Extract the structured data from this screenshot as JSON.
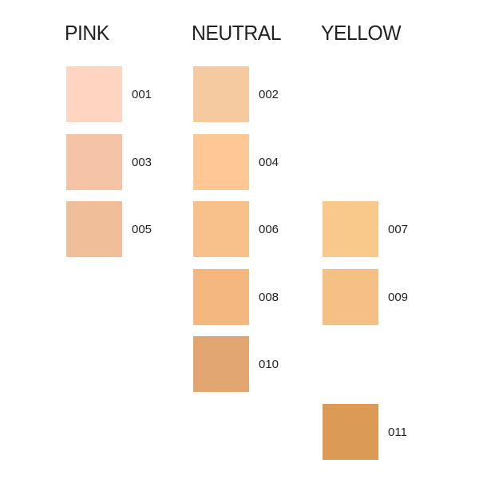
{
  "columns": [
    {
      "title": "PINK",
      "slots": [
        {
          "code": "001",
          "color": "#FDD5C0"
        },
        {
          "code": "003",
          "color": "#F5C4A6"
        },
        {
          "code": "005",
          "color": "#F0BE99"
        },
        null,
        null,
        null
      ]
    },
    {
      "title": "NEUTRAL",
      "slots": [
        {
          "code": "002",
          "color": "#F5CAA0"
        },
        {
          "code": "004",
          "color": "#FDC895"
        },
        {
          "code": "006",
          "color": "#F8C08A"
        },
        {
          "code": "008",
          "color": "#F4B780"
        },
        {
          "code": "010",
          "color": "#E1A672"
        },
        null
      ]
    },
    {
      "title": "YELLOW",
      "slots": [
        null,
        null,
        {
          "code": "007",
          "color": "#F9C98C"
        },
        {
          "code": "009",
          "color": "#F4C085"
        },
        null,
        {
          "code": "011",
          "color": "#DB9A56"
        }
      ]
    }
  ]
}
